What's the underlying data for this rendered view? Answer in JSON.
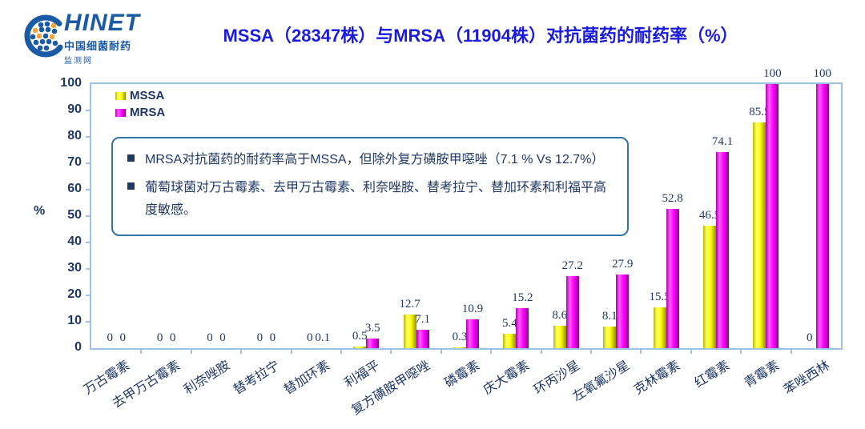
{
  "logo": {
    "brand": "HINET",
    "line1": "中国细菌耐药",
    "line2": "监测网"
  },
  "title": "MSSA（28347株）与MRSA（11904株）对抗菌药的耐药率（%）",
  "notes": [
    "MRSA对抗菌药的耐药率高于MSSA，但除外复方磺胺甲噁唑（7.1 % Vs 12.7%）",
    "葡萄球菌对万古霉素、去甲万古霉素、利奈唑胺、替考拉宁、替加环素和利福平高度敏感。"
  ],
  "colors": {
    "title_blue": "#1b1be0",
    "text_navy": "#1f3864",
    "axis_blue": "#9cc2e5",
    "note_border_blue": "#3473a8",
    "logo_blue": "#1b5aa5",
    "logo_orange": "#f2a33c",
    "mssa_yellow": "#ffff00",
    "mrsa_magenta": "#ff00ff"
  },
  "chart_data": {
    "type": "bar",
    "title": "MSSA（28347株）与MRSA（11904株）对抗菌药的耐药率（%）",
    "categories": [
      "万古霉素",
      "去甲万古霉素",
      "利奈唑胺",
      "替考拉宁",
      "替加环素",
      "利福平",
      "复方磺胺甲噁唑",
      "磷霉素",
      "庆大霉素",
      "环丙沙星",
      "左氧氟沙星",
      "克林霉素",
      "红霉素",
      "青霉素",
      "苯唑西林"
    ],
    "series": [
      {
        "name": "MSSA",
        "color": "#ffff00",
        "values": [
          0,
          0,
          0,
          0,
          0,
          0.5,
          12.7,
          0.3,
          5.4,
          8.6,
          8.1,
          15.5,
          46.5,
          85.5,
          0
        ]
      },
      {
        "name": "MRSA",
        "color": "#ff00ff",
        "values": [
          0,
          0,
          0,
          0,
          0.1,
          3.5,
          7.1,
          10.9,
          15.2,
          27.2,
          27.9,
          52.8,
          74.1,
          100,
          100
        ]
      }
    ],
    "xlabel": "",
    "ylabel": "%",
    "ylim": [
      0,
      100
    ],
    "ytick_step": 10,
    "grid": false,
    "data_labels": true,
    "legend_position": "top-left"
  }
}
